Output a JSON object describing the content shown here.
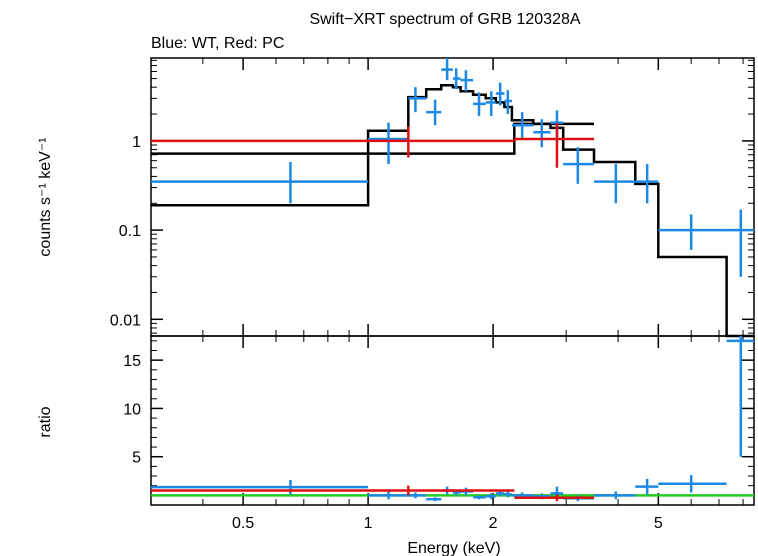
{
  "chart_data": {
    "type": "scatter",
    "title": "Swift−XRT spectrum of GRB 120328A",
    "subtitle": "Blue: WT, Red: PC",
    "xlabel": "Energy (keV)",
    "x_scale": "log",
    "xlim": [
      0.3,
      8.5
    ],
    "x_ticks": [
      {
        "v": 0.5,
        "label": "0.5"
      },
      {
        "v": 1,
        "label": "1"
      },
      {
        "v": 2,
        "label": "2"
      },
      {
        "v": 5,
        "label": "5"
      }
    ],
    "panels": [
      {
        "id": "spectrum",
        "ylabel": "counts s⁻¹ keV⁻¹",
        "y_scale": "log",
        "ylim": [
          0.0065,
          8.5
        ],
        "y_ticks": [
          {
            "v": 0.01,
            "label": "0.01"
          },
          {
            "v": 0.1,
            "label": "0.1"
          },
          {
            "v": 1,
            "label": "1"
          }
        ],
        "series": [
          {
            "id": "wt",
            "color": "#1e88e5",
            "points": [
              {
                "x": 0.65,
                "xlo": 0.3,
                "xhi": 1.0,
                "y": 0.35,
                "ylo": 0.2,
                "yhi": 0.58
              },
              {
                "x": 1.12,
                "xlo": 1.0,
                "xhi": 1.25,
                "y": 1.05,
                "ylo": 0.55,
                "yhi": 1.6
              },
              {
                "x": 1.3,
                "xlo": 1.25,
                "xhi": 1.38,
                "y": 3.0,
                "ylo": 2.1,
                "yhi": 4.0
              },
              {
                "x": 1.45,
                "xlo": 1.38,
                "xhi": 1.5,
                "y": 2.1,
                "ylo": 1.5,
                "yhi": 2.9
              },
              {
                "x": 1.55,
                "xlo": 1.5,
                "xhi": 1.6,
                "y": 6.3,
                "ylo": 4.8,
                "yhi": 8.5
              },
              {
                "x": 1.63,
                "xlo": 1.6,
                "xhi": 1.67,
                "y": 5.0,
                "ylo": 3.8,
                "yhi": 6.5
              },
              {
                "x": 1.72,
                "xlo": 1.67,
                "xhi": 1.79,
                "y": 4.8,
                "ylo": 3.6,
                "yhi": 6.2
              },
              {
                "x": 1.85,
                "xlo": 1.79,
                "xhi": 1.92,
                "y": 2.6,
                "ylo": 1.9,
                "yhi": 3.5
              },
              {
                "x": 1.98,
                "xlo": 1.92,
                "xhi": 2.03,
                "y": 2.7,
                "ylo": 1.9,
                "yhi": 3.6
              },
              {
                "x": 2.08,
                "xlo": 2.03,
                "xhi": 2.13,
                "y": 3.4,
                "ylo": 2.5,
                "yhi": 4.5
              },
              {
                "x": 2.17,
                "xlo": 2.13,
                "xhi": 2.22,
                "y": 2.8,
                "ylo": 2.0,
                "yhi": 3.7
              },
              {
                "x": 2.35,
                "xlo": 2.22,
                "xhi": 2.5,
                "y": 1.5,
                "ylo": 1.05,
                "yhi": 2.1
              },
              {
                "x": 2.62,
                "xlo": 2.5,
                "xhi": 2.75,
                "y": 1.25,
                "ylo": 0.85,
                "yhi": 1.75
              },
              {
                "x": 2.85,
                "xlo": 2.75,
                "xhi": 2.95,
                "y": 1.6,
                "ylo": 1.1,
                "yhi": 2.2
              },
              {
                "x": 3.2,
                "xlo": 2.95,
                "xhi": 3.5,
                "y": 0.55,
                "ylo": 0.33,
                "yhi": 0.85
              },
              {
                "x": 3.95,
                "xlo": 3.5,
                "xhi": 4.4,
                "y": 0.35,
                "ylo": 0.2,
                "yhi": 0.55
              },
              {
                "x": 4.7,
                "xlo": 4.4,
                "xhi": 5.0,
                "y": 0.35,
                "ylo": 0.2,
                "yhi": 0.55
              },
              {
                "x": 6.0,
                "xlo": 5.0,
                "xhi": 7.3,
                "y": 0.1,
                "ylo": 0.06,
                "yhi": 0.15
              },
              {
                "x": 7.9,
                "xlo": 7.3,
                "xhi": 8.5,
                "y": 0.1,
                "ylo": 0.03,
                "yhi": 0.17
              }
            ]
          },
          {
            "id": "pc",
            "color": "#dd1111",
            "points": [
              {
                "x": 1.25,
                "xlo": 0.3,
                "xhi": 2.25,
                "y": 1.0,
                "ylo": 0.65,
                "yhi": 1.45
              },
              {
                "x": 2.85,
                "xlo": 2.25,
                "xhi": 3.5,
                "y": 1.05,
                "ylo": 0.5,
                "yhi": 1.6
              }
            ]
          }
        ],
        "models": [
          {
            "id": "wt-model",
            "color": "#000000",
            "steps": [
              [
                0.3,
                0.19
              ],
              [
                1.0,
                1.3
              ],
              [
                1.25,
                3.1
              ],
              [
                1.38,
                3.8
              ],
              [
                1.5,
                4.2
              ],
              [
                1.6,
                4.0
              ],
              [
                1.67,
                3.6
              ],
              [
                1.79,
                3.3
              ],
              [
                1.92,
                3.0
              ],
              [
                2.03,
                2.7
              ],
              [
                2.13,
                2.4
              ],
              [
                2.22,
                1.7
              ],
              [
                2.5,
                1.55
              ],
              [
                2.75,
                1.4
              ],
              [
                2.95,
                0.8
              ],
              [
                3.5,
                0.58
              ],
              [
                4.4,
                0.33
              ],
              [
                5.0,
                0.05
              ],
              [
                7.3,
                0.0065
              ]
            ],
            "end": 8.5
          },
          {
            "id": "pc-model",
            "color": "#000000",
            "steps": [
              [
                0.3,
                0.72
              ],
              [
                2.25,
                1.55
              ]
            ],
            "end": 3.5
          }
        ]
      },
      {
        "id": "ratio",
        "ylabel": "ratio",
        "y_scale": "linear",
        "ylim": [
          0,
          17.5
        ],
        "y_ticks": [
          {
            "v": 5,
            "label": "5"
          },
          {
            "v": 10,
            "label": "10"
          },
          {
            "v": 15,
            "label": "15"
          }
        ],
        "reference": {
          "y": 1,
          "color": "#22cc22"
        },
        "series": [
          {
            "id": "wt-ratio",
            "color": "#1e88e5",
            "points": [
              {
                "x": 0.65,
                "xlo": 0.3,
                "xhi": 1.0,
                "y": 1.85,
                "ylo": 1.1,
                "yhi": 2.6
              },
              {
                "x": 1.12,
                "xlo": 1.0,
                "xhi": 1.25,
                "y": 1.0,
                "ylo": 0.6,
                "yhi": 1.4
              },
              {
                "x": 1.3,
                "xlo": 1.25,
                "xhi": 1.38,
                "y": 1.0,
                "ylo": 0.7,
                "yhi": 1.3
              },
              {
                "x": 1.45,
                "xlo": 1.38,
                "xhi": 1.5,
                "y": 0.6,
                "ylo": 0.4,
                "yhi": 0.8
              },
              {
                "x": 1.55,
                "xlo": 1.5,
                "xhi": 1.6,
                "y": 1.5,
                "ylo": 1.1,
                "yhi": 1.9
              },
              {
                "x": 1.63,
                "xlo": 1.6,
                "xhi": 1.67,
                "y": 1.3,
                "ylo": 1.0,
                "yhi": 1.6
              },
              {
                "x": 1.72,
                "xlo": 1.67,
                "xhi": 1.79,
                "y": 1.4,
                "ylo": 1.0,
                "yhi": 1.8
              },
              {
                "x": 1.85,
                "xlo": 1.79,
                "xhi": 1.92,
                "y": 0.8,
                "ylo": 0.6,
                "yhi": 1.0
              },
              {
                "x": 1.98,
                "xlo": 1.92,
                "xhi": 2.03,
                "y": 0.9,
                "ylo": 0.6,
                "yhi": 1.2
              },
              {
                "x": 2.08,
                "xlo": 2.03,
                "xhi": 2.13,
                "y": 1.2,
                "ylo": 0.9,
                "yhi": 1.5
              },
              {
                "x": 2.17,
                "xlo": 2.13,
                "xhi": 2.22,
                "y": 1.1,
                "ylo": 0.8,
                "yhi": 1.4
              },
              {
                "x": 2.35,
                "xlo": 2.22,
                "xhi": 2.5,
                "y": 1.0,
                "ylo": 0.7,
                "yhi": 1.3
              },
              {
                "x": 2.62,
                "xlo": 2.5,
                "xhi": 2.75,
                "y": 0.9,
                "ylo": 0.6,
                "yhi": 1.2
              },
              {
                "x": 2.85,
                "xlo": 2.75,
                "xhi": 2.95,
                "y": 1.2,
                "ylo": 0.6,
                "yhi": 1.9
              },
              {
                "x": 3.2,
                "xlo": 2.95,
                "xhi": 3.5,
                "y": 0.7,
                "ylo": 0.4,
                "yhi": 1.0
              },
              {
                "x": 3.95,
                "xlo": 3.5,
                "xhi": 4.4,
                "y": 1.0,
                "ylo": 0.6,
                "yhi": 1.4
              },
              {
                "x": 4.7,
                "xlo": 4.4,
                "xhi": 5.0,
                "y": 1.9,
                "ylo": 1.1,
                "yhi": 2.7
              },
              {
                "x": 6.0,
                "xlo": 5.0,
                "xhi": 7.3,
                "y": 2.2,
                "ylo": 1.3,
                "yhi": 3.1
              },
              {
                "x": 7.9,
                "xlo": 7.3,
                "xhi": 8.5,
                "y": 17.0,
                "ylo": 5.0,
                "yhi": 17.5
              }
            ]
          },
          {
            "id": "pc-ratio",
            "color": "#dd1111",
            "points": [
              {
                "x": 1.25,
                "xlo": 0.3,
                "xhi": 2.25,
                "y": 1.5,
                "ylo": 1.0,
                "yhi": 2.0
              },
              {
                "x": 2.85,
                "xlo": 2.25,
                "xhi": 3.5,
                "y": 0.75,
                "ylo": 0.4,
                "yhi": 1.1
              }
            ]
          }
        ]
      }
    ]
  }
}
